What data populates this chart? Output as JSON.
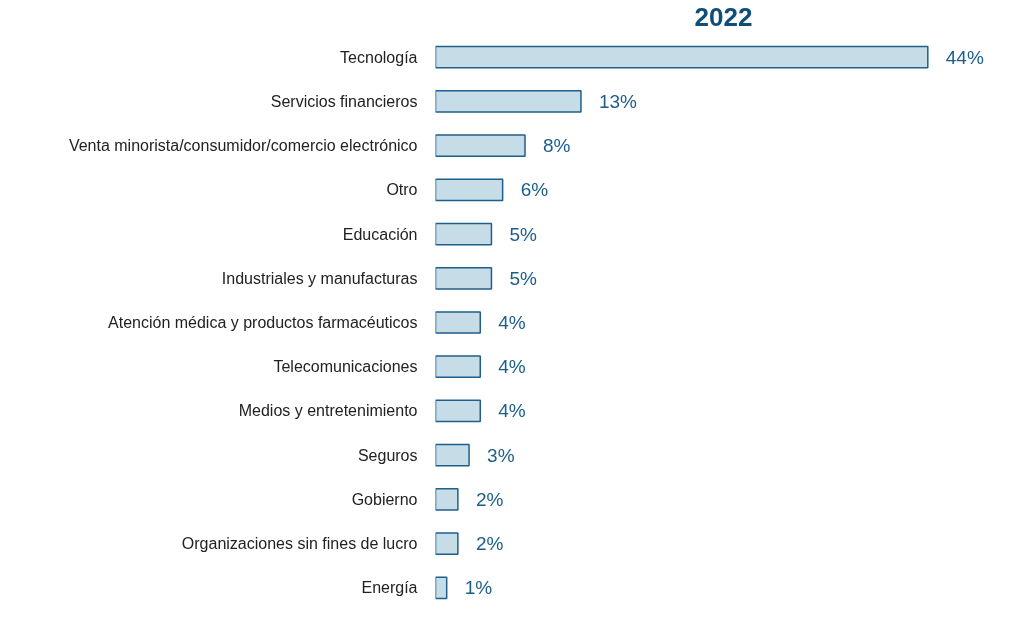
{
  "chart_data": {
    "type": "bar",
    "orientation": "horizontal",
    "title": "2022",
    "categories": [
      "Tecnología",
      "Servicios financieros",
      "Venta minorista/consumidor/comercio electrónico",
      "Otro",
      "Educación",
      "Industriales y manufacturas",
      "Atención médica y productos farmacéuticos",
      "Telecomunicaciones",
      "Medios y entretenimiento",
      "Seguros",
      "Gobierno",
      "Organizaciones sin fines de lucro",
      "Energía"
    ],
    "values": [
      44,
      13,
      8,
      6,
      5,
      5,
      4,
      4,
      4,
      3,
      2,
      2,
      1
    ],
    "value_labels": [
      "44%",
      "13%",
      "8%",
      "6%",
      "5%",
      "5%",
      "4%",
      "4%",
      "4%",
      "3%",
      "2%",
      "2%",
      "1%"
    ],
    "color": "#c6dde8",
    "grid": false
  }
}
